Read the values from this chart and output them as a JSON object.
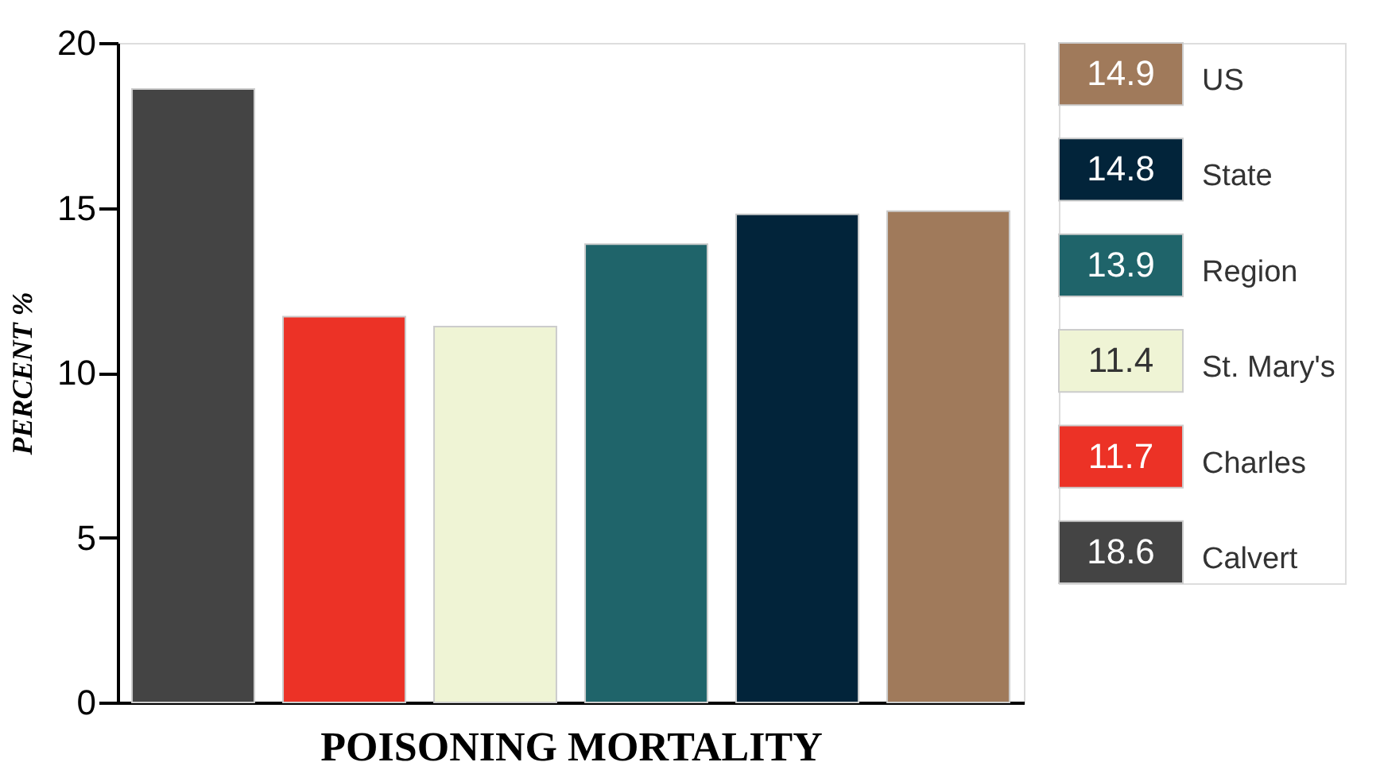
{
  "chart_data": {
    "type": "bar",
    "xlabel": "POISONING MORTALITY",
    "ylabel": "PERCENT %",
    "categories": [
      null,
      null,
      null,
      null,
      null,
      null
    ],
    "series": [
      {
        "name": "Calvert",
        "color": "#444444",
        "values": [
          18.6,
          null,
          null,
          null,
          null,
          null
        ]
      },
      {
        "name": "Charles",
        "color": "#ec3226",
        "values": [
          null,
          11.7,
          null,
          null,
          null,
          null
        ]
      },
      {
        "name": "St. Mary's",
        "color": "#eff4d5",
        "values": [
          null,
          null,
          11.4,
          null,
          null,
          null
        ]
      },
      {
        "name": "Region",
        "color": "#1f646a",
        "values": [
          null,
          null,
          null,
          13.9,
          null,
          null
        ]
      },
      {
        "name": "State",
        "color": "#02243a",
        "values": [
          null,
          null,
          null,
          null,
          14.8,
          null
        ]
      },
      {
        "name": "US",
        "color": "#a07a5b",
        "values": [
          null,
          null,
          null,
          null,
          null,
          14.9
        ]
      }
    ],
    "annotations": [
      "18.6",
      "11.7",
      "11.4",
      "13.9",
      "14.8",
      "14.9"
    ],
    "ylim": [
      0,
      20
    ],
    "yticks": [
      0,
      5,
      10,
      15,
      20
    ],
    "grid": false,
    "legend": "right",
    "tick_labels": "y"
  }
}
